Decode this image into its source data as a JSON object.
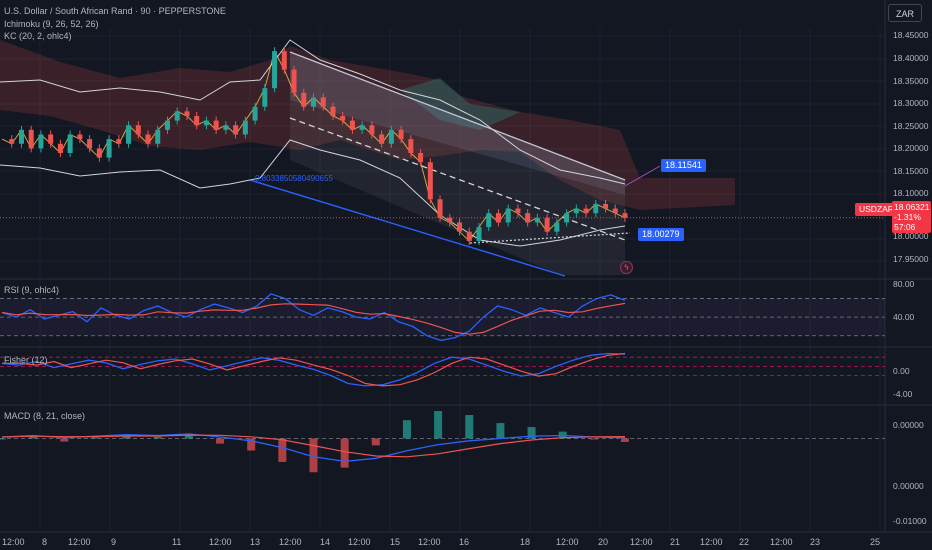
{
  "header": {
    "title": "U.S. Dollar / South African Rand · 90 · PEPPERSTONE",
    "ichimoku": "Ichimoku (9, 26, 52, 26)",
    "kc": "KC (20, 2, ohlc4)",
    "currency_button": "ZAR"
  },
  "panes": {
    "rsi_label": "RSI (9, ohlc4)",
    "fisher_label": "Fisher (12)",
    "macd_label": "MACD (8, 21, close)"
  },
  "price_boxes": {
    "upper_target": "18.11541",
    "lower_target": "18.00279",
    "symbol": "USDZAR",
    "last_price": "18.06321",
    "change": "-1.31%",
    "countdown": "57:06"
  },
  "fib_label": "0.8033850580490655",
  "y_axis_main": [
    "18.45000",
    "18.40000",
    "18.35000",
    "18.30000",
    "18.25000",
    "18.20000",
    "18.15000",
    "18.10000",
    "18.00000",
    "17.95000"
  ],
  "y_axis_rsi": [
    "80.00",
    "40.00"
  ],
  "y_axis_fisher": [
    "0.00",
    "-4.00"
  ],
  "y_axis_macd": [
    "0.00000",
    "0.00000",
    "-0.01000"
  ],
  "x_axis": [
    "12:00",
    "8",
    "12:00",
    "9",
    "11",
    "12:00",
    "13",
    "12:00",
    "14",
    "12:00",
    "15",
    "12:00",
    "16",
    "18",
    "12:00",
    "20",
    "12:00",
    "21",
    "12:00",
    "22",
    "12:00",
    "23",
    "25"
  ],
  "colors": {
    "background": "#131722",
    "up": "#26a69a",
    "down": "#ef5350",
    "blue": "#2962ff",
    "grid": "#1e222d"
  },
  "chart_data": [
    {
      "type": "line",
      "title": "U.S. Dollar / South African Rand · 90 · PEPPERSTONE",
      "series": [
        {
          "name": "USDZAR",
          "values": [
            18.23,
            18.22,
            18.25,
            18.21,
            18.24,
            18.22,
            18.2,
            18.24,
            18.23,
            18.21,
            18.19,
            18.23,
            18.22,
            18.26,
            18.24,
            18.22,
            18.25,
            18.27,
            18.29,
            18.28,
            18.26,
            18.27,
            18.25,
            18.26,
            18.24,
            18.27,
            18.3,
            18.34,
            18.42,
            18.38,
            18.33,
            18.3,
            18.32,
            18.3,
            18.28,
            18.27,
            18.25,
            18.26,
            18.24,
            18.22,
            18.25,
            18.23,
            18.2,
            18.18,
            18.1,
            18.06,
            18.05,
            18.03,
            18.01,
            18.04,
            18.07,
            18.05,
            18.08,
            18.07,
            18.05,
            18.06,
            18.03,
            18.05,
            18.07,
            18.08,
            18.07,
            18.09,
            18.08,
            18.07,
            18.06
          ]
        }
      ],
      "ylim": [
        17.93,
        18.47
      ],
      "grid": true
    },
    {
      "type": "line",
      "title": "RSI (9, ohlc4)",
      "ylim": [
        20,
        90
      ],
      "series": [
        {
          "name": "RSI",
          "values": [
            55,
            50,
            58,
            48,
            52,
            56,
            45,
            60,
            52,
            48,
            57,
            62,
            55,
            50,
            58,
            64,
            60,
            55,
            62,
            75,
            70,
            58,
            52,
            60,
            56,
            50,
            48,
            55,
            45,
            40,
            30,
            25,
            28,
            35,
            50,
            62,
            58,
            52,
            60,
            55,
            50,
            62,
            70,
            74,
            68
          ]
        }
      ]
    },
    {
      "type": "line",
      "title": "Fisher (12)",
      "ylim": [
        -5.5,
        3
      ],
      "series": [
        {
          "name": "Fisher",
          "values": [
            0.5,
            0.2,
            0.8,
            -0.2,
            0.4,
            1,
            0.6,
            -0.4,
            0.3,
            0.9,
            1.2,
            0.4,
            -0.6,
            0.1,
            0.8,
            1.4,
            1,
            0.2,
            -0.5,
            -1.5,
            -2.8,
            -3.2,
            -3,
            -2.2,
            -1,
            0.5,
            1.5,
            1.2,
            0.2,
            -0.8,
            -1.6,
            -1.2,
            0,
            1,
            1.8,
            2.1,
            2
          ]
        }
      ]
    },
    {
      "type": "line",
      "title": "MACD (8, 21, close)",
      "ylim": [
        -0.012,
        0.004
      ],
      "series": [
        {
          "name": "MACD",
          "values": [
            0.0002,
            0.0004,
            0.0001,
            0.0003,
            0.0005,
            0.0004,
            0.0006,
            0.0002,
            -0.0003,
            -0.0012,
            -0.0024,
            -0.003,
            -0.0026,
            -0.0016,
            -0.0008,
            -0.0003,
            0,
            0.0003,
            0.0004,
            0.0002,
            0.0001
          ]
        }
      ]
    }
  ]
}
